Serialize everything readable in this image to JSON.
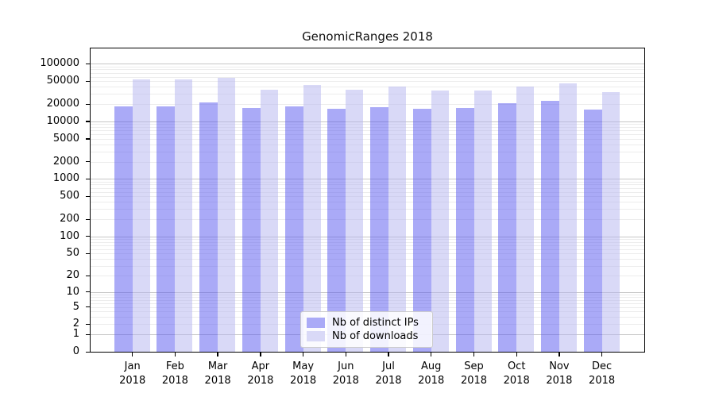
{
  "chart_data": {
    "type": "bar",
    "title": "GenomicRanges 2018",
    "categories": [
      "Jan",
      "Feb",
      "Mar",
      "Apr",
      "May",
      "Jun",
      "Jul",
      "Aug",
      "Sep",
      "Oct",
      "Nov",
      "Dec"
    ],
    "year": "2018",
    "series": [
      {
        "name": "Nb of distinct IPs",
        "color_hex": "#aaaaf7",
        "fill": "rgba(85,85,239,0.5)",
        "values": [
          18100,
          18300,
          21600,
          17100,
          18300,
          16600,
          17900,
          16800,
          17100,
          21000,
          22800,
          16200
        ]
      },
      {
        "name": "Nb of downloads",
        "color_hex": "#d9d9f7",
        "fill": "rgba(179,179,239,0.5)",
        "values": [
          53500,
          54000,
          56500,
          35800,
          42700,
          35800,
          40300,
          34400,
          34400,
          41000,
          46500,
          32300
        ]
      }
    ],
    "y_axis": {
      "scale": "log1p",
      "tick_labels": [
        "100000",
        "50000",
        "20000",
        "10000",
        "5000",
        "2000",
        "1000",
        "500",
        "200",
        "100",
        "50",
        "20",
        "10",
        "5",
        "2",
        "1",
        "0"
      ],
      "tick_values": [
        100000,
        50000,
        20000,
        10000,
        5000,
        2000,
        1000,
        500,
        200,
        100,
        50,
        20,
        10,
        5,
        2,
        1,
        0
      ],
      "max": 185000
    },
    "grid": {
      "major_color": "#c6c6c6",
      "minor_color": "#ececec"
    },
    "legend_position": "lower center"
  }
}
